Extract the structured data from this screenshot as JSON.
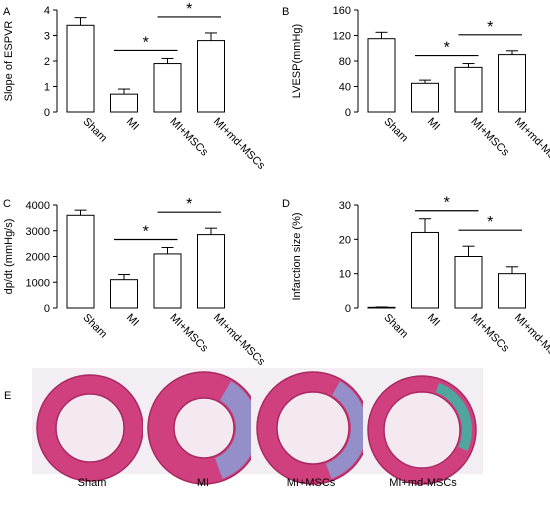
{
  "chart_data": [
    {
      "panel": "A",
      "type": "bar",
      "ylabel": "Slope of ESPVR",
      "xlabel": "",
      "ylim": [
        0,
        4
      ],
      "yticks": [
        0,
        1,
        2,
        3,
        4
      ],
      "categories": [
        "Sham",
        "MI",
        "MI+MSCs",
        "MI+md-MSCs"
      ],
      "values": [
        3.4,
        0.7,
        1.9,
        2.8
      ],
      "errors": [
        0.3,
        0.2,
        0.2,
        0.3
      ],
      "significance": [
        {
          "from": 1,
          "to": 2,
          "label": "*"
        },
        {
          "from": 2,
          "to": 3,
          "label": "*"
        }
      ]
    },
    {
      "panel": "B",
      "type": "bar",
      "ylabel": "LVESP(mmHg)",
      "xlabel": "",
      "ylim": [
        0,
        160
      ],
      "yticks": [
        0,
        40,
        80,
        120,
        160
      ],
      "categories": [
        "Sham",
        "MI",
        "MI+MSCs",
        "MI+md-MSCs"
      ],
      "values": [
        115,
        45,
        70,
        90
      ],
      "errors": [
        10,
        5,
        6,
        6
      ],
      "significance": [
        {
          "from": 1,
          "to": 2,
          "label": "*"
        },
        {
          "from": 2,
          "to": 3,
          "label": "*"
        }
      ]
    },
    {
      "panel": "C",
      "type": "bar",
      "ylabel": "dp/dt (mmHg/s)",
      "xlabel": "",
      "ylim": [
        0,
        4000
      ],
      "yticks": [
        0,
        1000,
        2000,
        3000,
        4000
      ],
      "categories": [
        "Sham",
        "MI",
        "MI+MSCs",
        "MI+md-MSCs"
      ],
      "values": [
        3600,
        1100,
        2100,
        2850
      ],
      "errors": [
        200,
        200,
        250,
        250
      ],
      "significance": [
        {
          "from": 1,
          "to": 2,
          "label": "*"
        },
        {
          "from": 2,
          "to": 3,
          "label": "*"
        }
      ]
    },
    {
      "panel": "D",
      "type": "bar",
      "ylabel": "Infarction size (%)",
      "xlabel": "",
      "ylim": [
        0,
        30
      ],
      "yticks": [
        0,
        10,
        20,
        30
      ],
      "categories": [
        "Sham",
        "MI",
        "MI+MSCs",
        "MI+md-MSCs"
      ],
      "values": [
        0.2,
        22,
        15,
        10
      ],
      "errors": [
        0.1,
        4,
        3,
        2
      ],
      "significance": [
        {
          "from": 1,
          "to": 2,
          "label": "*"
        },
        {
          "from": 2,
          "to": 3,
          "label": "*"
        }
      ]
    }
  ],
  "histology": {
    "letter": "E",
    "labels": [
      "Sham",
      "MI",
      "MI+MSCs",
      "MI+md-MSCs"
    ]
  },
  "colors": {
    "tissue": "#d0407f",
    "tissue_dark": "#a8285f",
    "fibrosis": "#8a9ed6",
    "fibrosis_green": "#3fb3a2"
  }
}
